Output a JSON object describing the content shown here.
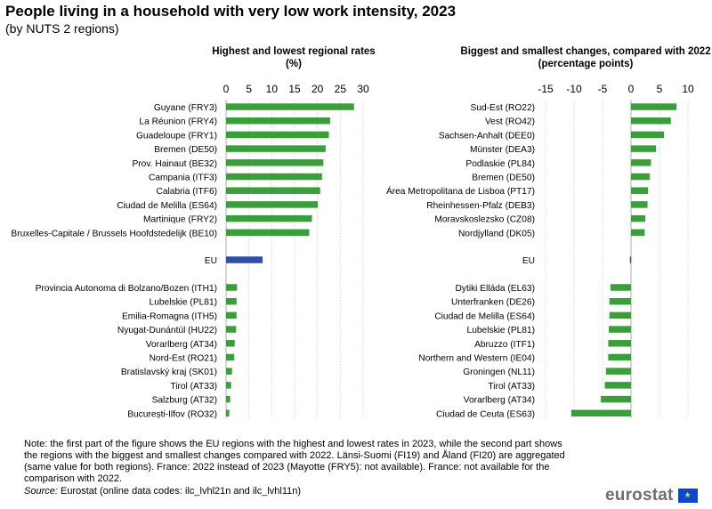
{
  "figure": {
    "title": "People living in a household with very low work intensity, 2023",
    "subtitle": "(by NUTS  2 regions)",
    "note": "Note: the first part of the figure shows the EU regions with the highest and lowest rates in 2023, while the second part shows the regions with the biggest and smallest changes compared with 2022. Länsi-Suomi (FI19) and Åland (FI20) are aggregated (same value for both regions). France: 2022 instead of 2023 (Mayotte (FRY5): not available). France: not available for the comparison with 2022.",
    "source_label": "Source:",
    "source_text": " Eurostat (online data codes: ilc_lvhl21n and ilc_lvhl11n)",
    "logo_text": "eurostat",
    "logo_icon": "eu-flag-icon"
  },
  "colors": {
    "bar": "#3a9e3a",
    "eu_bar": "#2e4fa3",
    "grid": "#d9d9d9",
    "axis": "#b0b0b0"
  },
  "chart_data": [
    {
      "type": "bar",
      "orientation": "horizontal",
      "title": "Highest and lowest regional rates",
      "subtitle": "(%)",
      "xlim": [
        0,
        30
      ],
      "ticks": [
        0,
        5,
        10,
        15,
        20,
        25,
        30
      ],
      "grid": true,
      "highest": [
        {
          "label": "Guyane (FRY3)",
          "value": 28.0
        },
        {
          "label": "La Réunion (FRY4)",
          "value": 22.8
        },
        {
          "label": "Guadeloupe (FRY1)",
          "value": 22.5
        },
        {
          "label": "Bremen (DE50)",
          "value": 21.8
        },
        {
          "label": "Prov. Hainaut (BE32)",
          "value": 21.3
        },
        {
          "label": "Campania (ITF3)",
          "value": 21.0
        },
        {
          "label": "Calabria (ITF6)",
          "value": 20.6
        },
        {
          "label": "Ciudad de Melilla (ES64)",
          "value": 20.1
        },
        {
          "label": "Martinique (FRY2)",
          "value": 18.8
        },
        {
          "label": "Bruxelles-Capitale / Brussels Hoofdstedelijk (BE10)",
          "value": 18.2
        }
      ],
      "eu": {
        "label": "EU",
        "value": 8.0
      },
      "lowest": [
        {
          "label": "Provincia Autonoma di Bolzano/Bozen (ITH1)",
          "value": 2.4
        },
        {
          "label": "Lubelskie (PL81)",
          "value": 2.3
        },
        {
          "label": "Emilia-Romagna (ITH5)",
          "value": 2.3
        },
        {
          "label": "Nyugat-Dunántúl (HU22)",
          "value": 2.2
        },
        {
          "label": "Vorarlberg (AT34)",
          "value": 1.9
        },
        {
          "label": "Nord-Est (RO21)",
          "value": 1.8
        },
        {
          "label": "Bratislavský kraj (SK01)",
          "value": 1.3
        },
        {
          "label": "Tirol (AT33)",
          "value": 1.1
        },
        {
          "label": "Salzburg (AT32)",
          "value": 0.9
        },
        {
          "label": "București-Ilfov (RO32)",
          "value": 0.7
        }
      ]
    },
    {
      "type": "bar",
      "orientation": "horizontal",
      "title": "Biggest and smallest changes, compared with 2022",
      "subtitle": "(percentage points)",
      "xlim": [
        -15,
        10
      ],
      "ticks": [
        -15,
        -10,
        -5,
        0,
        5,
        10
      ],
      "grid": true,
      "increases": [
        {
          "label": "Sud-Est (RO22)",
          "value": 8.0
        },
        {
          "label": "Vest (RO42)",
          "value": 7.0
        },
        {
          "label": "Sachsen-Anhalt (DEE0)",
          "value": 5.8
        },
        {
          "label": "Münster (DEA3)",
          "value": 4.4
        },
        {
          "label": "Podlaskie (PL84)",
          "value": 3.5
        },
        {
          "label": "Bremen (DE50)",
          "value": 3.3
        },
        {
          "label": "Área Metropolitana de Lisboa (PT17)",
          "value": 3.0
        },
        {
          "label": "Rheinhessen-Pfalz (DEB3)",
          "value": 2.9
        },
        {
          "label": "Moravskoslezsko (CZ08)",
          "value": 2.5
        },
        {
          "label": "Nordjylland (DK05)",
          "value": 2.4
        }
      ],
      "eu": {
        "label": "EU",
        "value": -0.2
      },
      "decreases": [
        {
          "label": "Dytiki Elláda (EL63)",
          "value": -3.6
        },
        {
          "label": "Unterfranken (DE26)",
          "value": -3.8
        },
        {
          "label": "Ciudad de Melilla (ES64)",
          "value": -3.8
        },
        {
          "label": "Lubelskie (PL81)",
          "value": -3.9
        },
        {
          "label": "Abruzzo (ITF1)",
          "value": -4.0
        },
        {
          "label": "Northern and Western (IE04)",
          "value": -4.0
        },
        {
          "label": "Groningen (NL11)",
          "value": -4.4
        },
        {
          "label": "Tirol (AT33)",
          "value": -4.6
        },
        {
          "label": "Vorarlberg (AT34)",
          "value": -5.3
        },
        {
          "label": "Ciudad de Ceuta (ES63)",
          "value": -10.5
        }
      ]
    }
  ]
}
